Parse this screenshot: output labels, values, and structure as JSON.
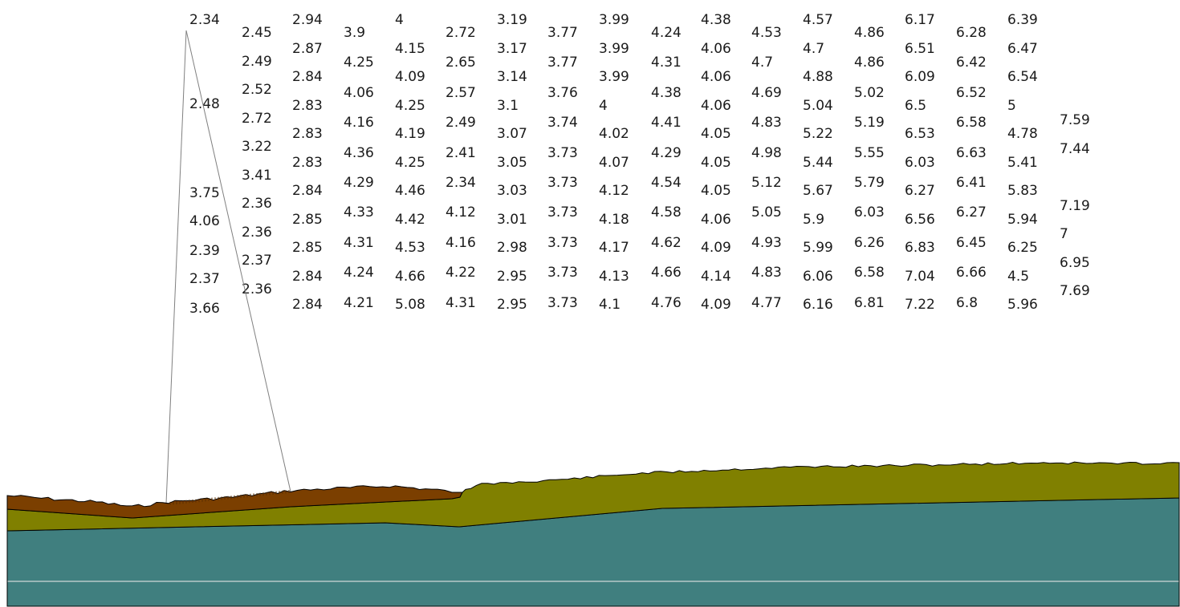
{
  "colors": {
    "top_layer": "#7b3f00",
    "middle_layer": "#808000",
    "bottom_layer": "#407f7f",
    "line": "#000000",
    "guide_line": "#b8c8c8",
    "leader_line": "#808080"
  },
  "columns": [
    {
      "id": "c01",
      "values": [
        "2.34",
        "2.48",
        "3.75",
        "4.06",
        "2.39",
        "2.37",
        "3.66"
      ]
    },
    {
      "id": "c02",
      "values": [
        "2.45",
        "2.49",
        "2.52",
        "2.72",
        "3.22",
        "3.41",
        "2.36",
        "2.36",
        "2.37",
        "2.36"
      ]
    },
    {
      "id": "c03",
      "values": [
        "2.94",
        "2.87",
        "2.84",
        "2.83",
        "2.83",
        "2.83",
        "2.84",
        "2.85",
        "2.85",
        "2.84",
        "2.84"
      ]
    },
    {
      "id": "c04",
      "values": [
        "3.9",
        "4.25",
        "4.06",
        "4.16",
        "4.36",
        "4.29",
        "4.33",
        "4.31",
        "4.24",
        "4.21"
      ]
    },
    {
      "id": "c05",
      "values": [
        "4",
        "4.15",
        "4.09",
        "4.25",
        "4.19",
        "4.25",
        "4.46",
        "4.42",
        "4.53",
        "4.66",
        "5.08"
      ]
    },
    {
      "id": "c06",
      "values": [
        "2.72",
        "2.65",
        "2.57",
        "2.49",
        "2.41",
        "2.34",
        "4.12",
        "4.16",
        "4.22",
        "4.31"
      ]
    },
    {
      "id": "c07",
      "values": [
        "3.19",
        "3.17",
        "3.14",
        "3.1",
        "3.07",
        "3.05",
        "3.03",
        "3.01",
        "2.98",
        "2.95",
        "2.95"
      ]
    },
    {
      "id": "c08",
      "values": [
        "3.77",
        "3.77",
        "3.76",
        "3.74",
        "3.73",
        "3.73",
        "3.73",
        "3.73",
        "3.73",
        "3.73"
      ]
    },
    {
      "id": "c09",
      "values": [
        "3.99",
        "3.99",
        "3.99",
        "4",
        "4.02",
        "4.07",
        "4.12",
        "4.18",
        "4.17",
        "4.13",
        "4.1"
      ]
    },
    {
      "id": "c10",
      "values": [
        "4.24",
        "4.31",
        "4.38",
        "4.41",
        "4.29",
        "4.54",
        "4.58",
        "4.62",
        "4.66",
        "4.76"
      ]
    },
    {
      "id": "c11",
      "values": [
        "4.38",
        "4.06",
        "4.06",
        "4.06",
        "4.05",
        "4.05",
        "4.05",
        "4.06",
        "4.09",
        "4.14",
        "4.09"
      ]
    },
    {
      "id": "c12",
      "values": [
        "4.53",
        "4.7",
        "4.69",
        "4.83",
        "4.98",
        "5.12",
        "5.05",
        "4.93",
        "4.83",
        "4.77"
      ]
    },
    {
      "id": "c13",
      "values": [
        "4.57",
        "4.7",
        "4.88",
        "5.04",
        "5.22",
        "5.44",
        "5.67",
        "5.9",
        "5.99",
        "6.06",
        "6.16"
      ]
    },
    {
      "id": "c14",
      "values": [
        "4.86",
        "4.86",
        "5.02",
        "5.19",
        "5.55",
        "5.79",
        "6.03",
        "6.26",
        "6.58",
        "6.81"
      ]
    },
    {
      "id": "c15",
      "values": [
        "6.17",
        "6.51",
        "6.09",
        "6.5",
        "6.53",
        "6.03",
        "6.27",
        "6.56",
        "6.83",
        "7.04",
        "7.22"
      ]
    },
    {
      "id": "c16",
      "values": [
        "6.28",
        "6.42",
        "6.52",
        "6.58",
        "6.63",
        "6.41",
        "6.27",
        "6.45",
        "6.66",
        "6.8"
      ]
    },
    {
      "id": "c17",
      "values": [
        "6.39",
        "6.47",
        "6.54",
        "5",
        "4.78",
        "5.41",
        "5.83",
        "5.94",
        "6.25",
        "4.5",
        "5.96"
      ]
    },
    {
      "id": "c18",
      "values": [
        "7.59",
        "7.44",
        "7.19",
        "7",
        "6.95",
        "7.69"
      ]
    }
  ]
}
